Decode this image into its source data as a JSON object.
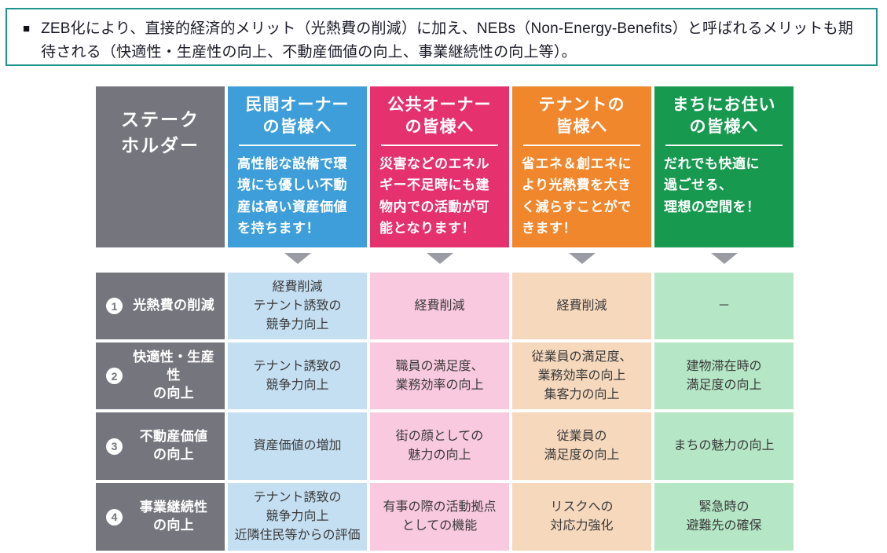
{
  "note": {
    "bullet": "■",
    "text": "ZEB化により、直接的経済的メリット（光熱費の削減）に加え、NEBs（Non-Energy-Benefits）と呼ばれるメリットも期待される（快適性・生産性の向上、不動産価値の向上、事業継続性の向上等）。"
  },
  "colors": {
    "note_border": "#1E948E",
    "gray": "#75757D",
    "blue": "#3E9EDA",
    "pink": "#E5326F",
    "orange": "#F0872C",
    "green": "#17994F",
    "light_blue": "#C5DFF2",
    "light_pink": "#F8C9DF",
    "light_orange": "#F6D8BD",
    "light_green": "#B5E6C6",
    "arrow": "#9B9BA3"
  },
  "table": {
    "corner_label": "ステーク\nホルダー",
    "columns": [
      {
        "title": "民間オーナー\nの皆様へ",
        "desc": "高性能な設備で環\n境にも優しい不動\n産は高い資産価値\nを持ちます！"
      },
      {
        "title": "公共オーナー\nの皆様へ",
        "desc": "災害などのエネル\nギー不足時にも建\n物内での活動が可\n能となります！"
      },
      {
        "title": "テナントの\n皆様へ",
        "desc": "省エネ＆創エネに\nより光熱費を大き\nく減らすことがで\nきます！"
      },
      {
        "title": "まちにお住い\nの皆様へ",
        "desc": "だれでも快適に\n過ごせる、\n理想の空間を！"
      }
    ],
    "rows": [
      {
        "num": "1",
        "label": "光熱費の削減",
        "cells": [
          "経費削減\nテナント誘致の\n競争力向上",
          "経費削減",
          "経費削減",
          "－"
        ]
      },
      {
        "num": "2",
        "label": "快適性・生産性\nの向上",
        "cells": [
          "テナント誘致の\n競争力向上",
          "職員の満足度、\n業務効率の向上",
          "従業員の満足度、\n業務効率の向上\n集客力の向上",
          "建物滞在時の\n満足度の向上"
        ]
      },
      {
        "num": "3",
        "label": "不動産価値\nの向上",
        "cells": [
          "資産価値の増加",
          "街の顔としての\n魅力の向上",
          "従業員の\n満足度の向上",
          "まちの魅力の向上"
        ]
      },
      {
        "num": "4",
        "label": "事業継続性\nの向上",
        "cells": [
          "テナント誘致の\n競争力向上\n近隣住民等からの評価",
          "有事の際の活動拠点\nとしての機能",
          "リスクへの\n対応力強化",
          "緊急時の\n避難先の確保"
        ]
      }
    ]
  }
}
